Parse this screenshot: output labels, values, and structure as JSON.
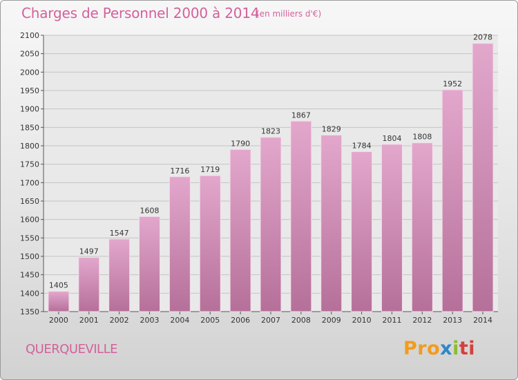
{
  "header": {
    "title": "Charges de Personnel 2000 à 2014",
    "subtitle": "(en milliers d'€)"
  },
  "footer": {
    "commune": "QUERQUEVILLE",
    "logo_parts": [
      "Pro",
      "x",
      "i",
      "ti"
    ]
  },
  "colors": {
    "bar_top": "#e3a7cc",
    "bar_bottom": "#b57099",
    "title": "#d4609c",
    "grid": "#c4c4c4"
  },
  "chart_data": {
    "type": "bar",
    "title": "Charges de Personnel 2000 à 2014",
    "subtitle": "(en milliers d'€)",
    "xlabel": "",
    "ylabel": "",
    "categories": [
      "2000",
      "2001",
      "2002",
      "2003",
      "2004",
      "2005",
      "2006",
      "2007",
      "2008",
      "2009",
      "2010",
      "2011",
      "2012",
      "2013",
      "2014"
    ],
    "values": [
      1405,
      1497,
      1547,
      1608,
      1716,
      1719,
      1790,
      1823,
      1867,
      1829,
      1784,
      1804,
      1808,
      1952,
      2078
    ],
    "ylim": [
      1350,
      2100
    ],
    "yticks": [
      1350,
      1400,
      1450,
      1500,
      1550,
      1600,
      1650,
      1700,
      1750,
      1800,
      1850,
      1900,
      1950,
      2000,
      2050,
      2100
    ],
    "grid": true,
    "data_labels": true,
    "legend": "none"
  }
}
